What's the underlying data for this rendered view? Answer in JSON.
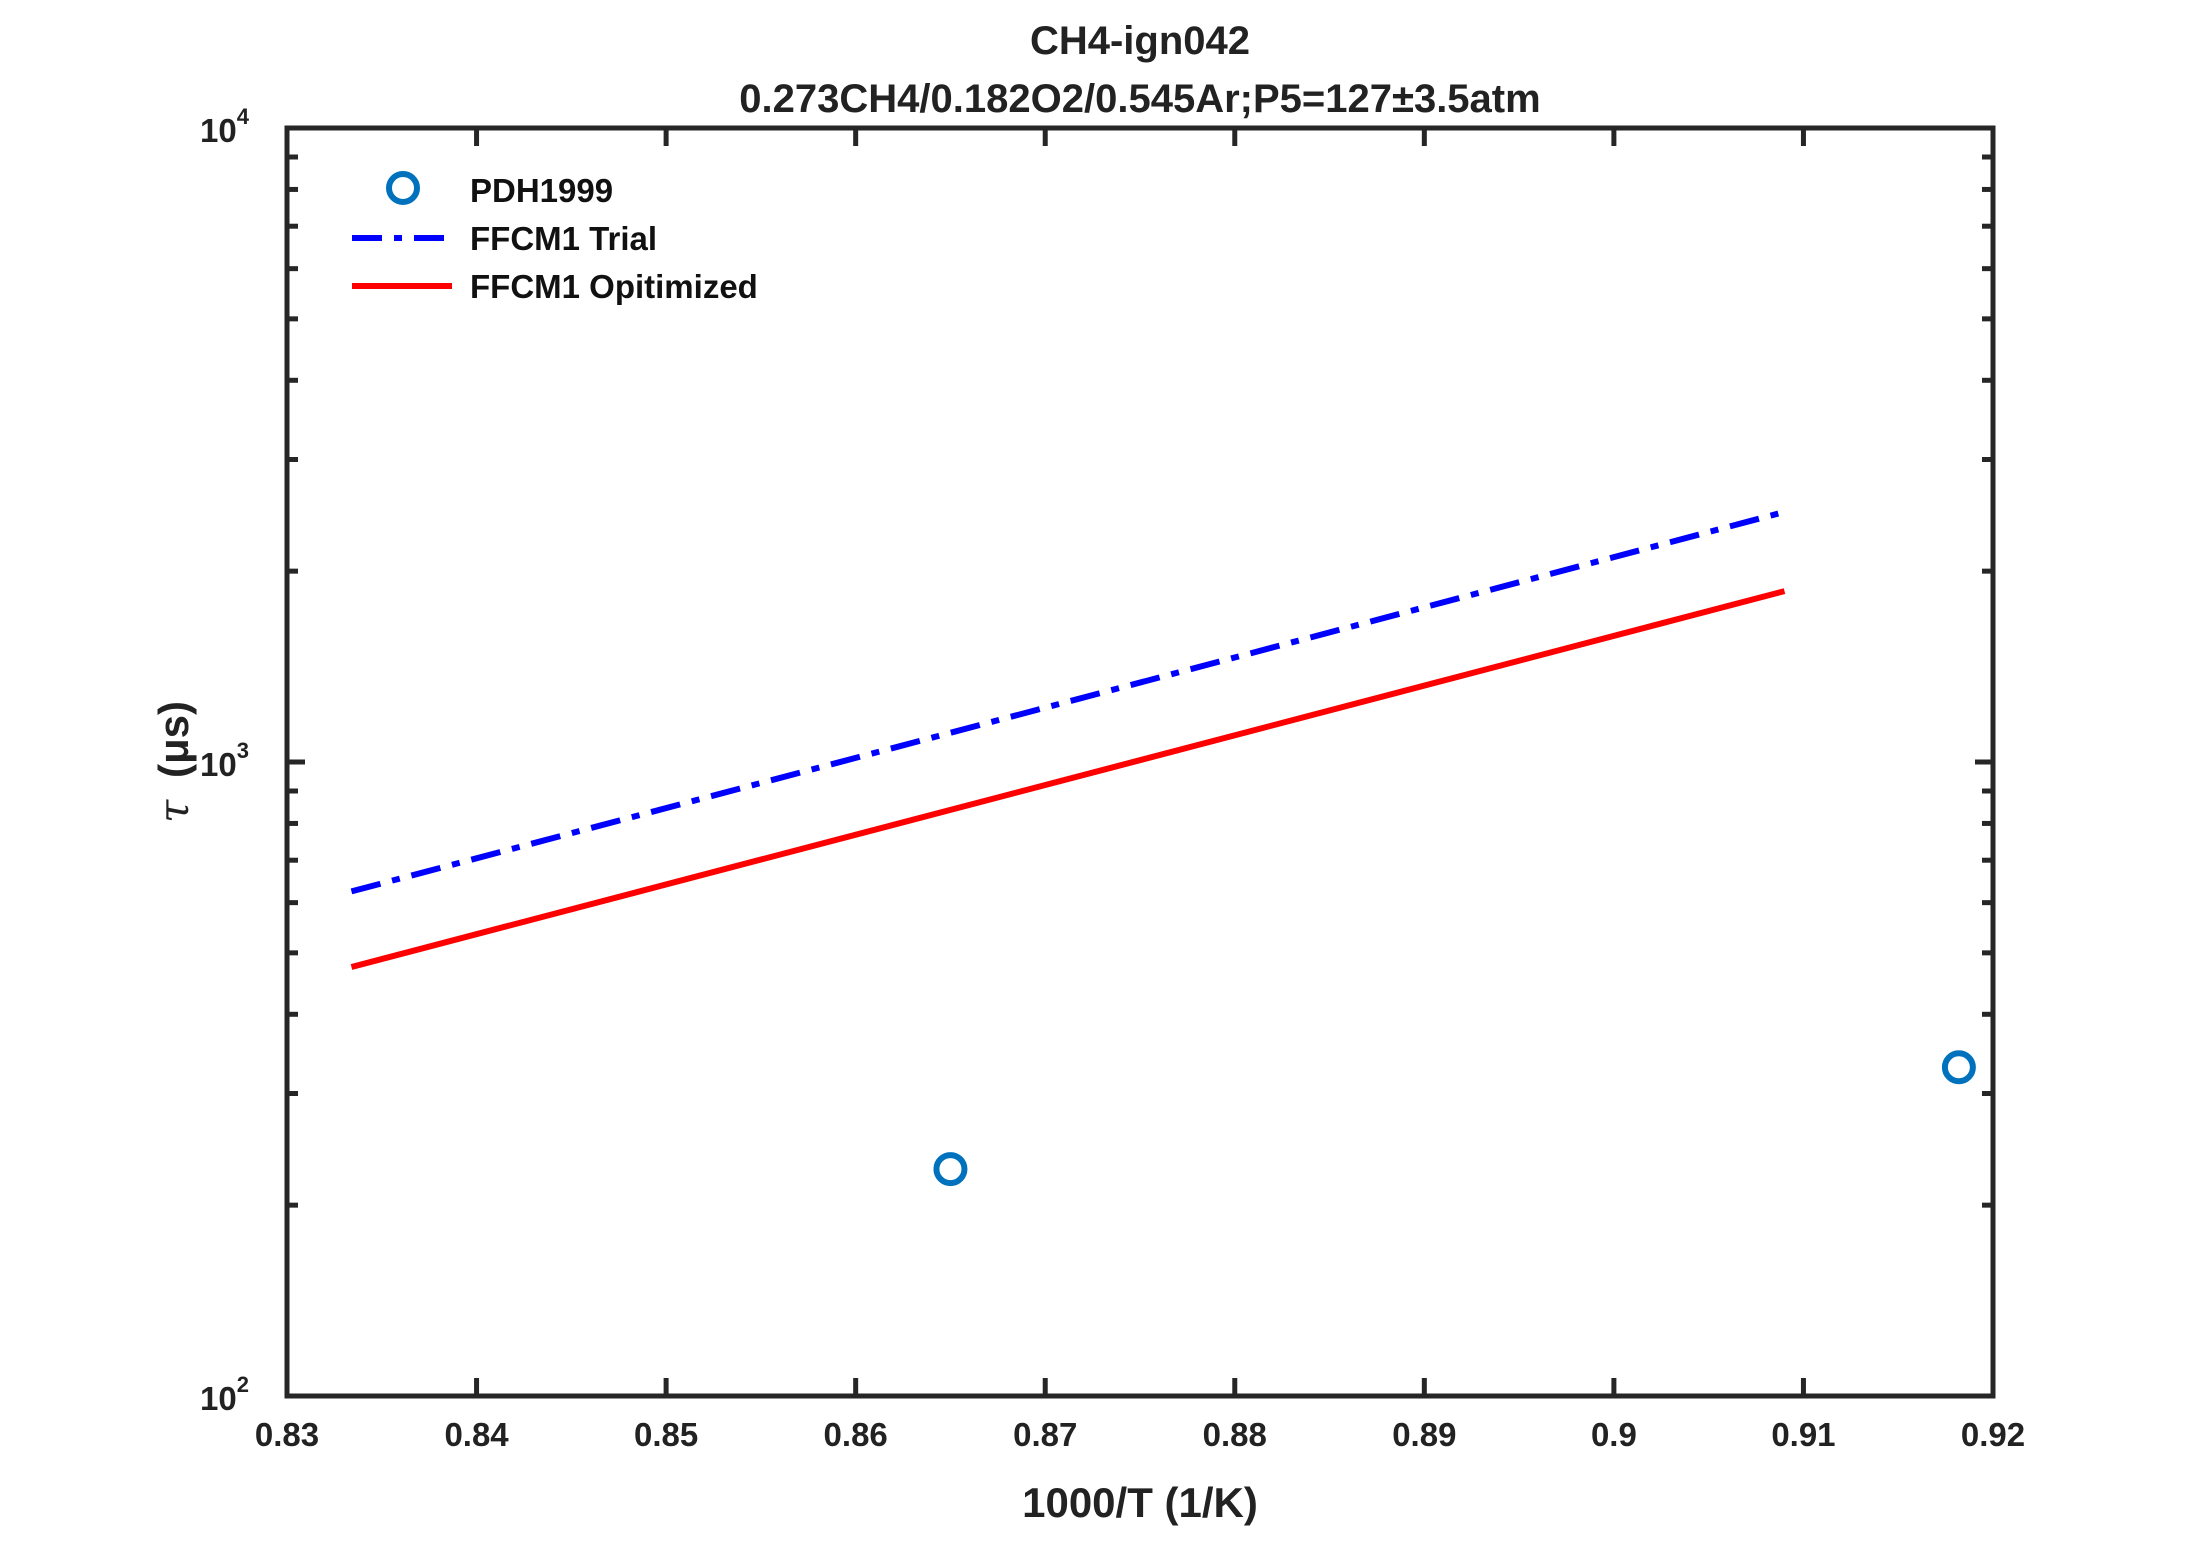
{
  "chart_data": {
    "type": "line",
    "title": "CH4-ign042",
    "subtitle": "0.273CH4/0.182O2/0.545Ar;P5=127±3.5atm",
    "xlabel": "1000/T (1/K)",
    "ylabel_symbol": "τ",
    "ylabel_unit": "(μs)",
    "xlim": [
      0.83,
      0.92
    ],
    "ylim": [
      100,
      10000
    ],
    "yscale": "log",
    "xticks": [
      0.83,
      0.84,
      0.85,
      0.86,
      0.87,
      0.88,
      0.89,
      0.9,
      0.91,
      0.92
    ],
    "xtick_labels": [
      "0.83",
      "0.84",
      "0.85",
      "0.86",
      "0.87",
      "0.88",
      "0.89",
      "0.9",
      "0.91",
      "0.92"
    ],
    "yticks_major": [
      {
        "value": 100,
        "base": "10",
        "exp": "2"
      },
      {
        "value": 1000,
        "base": "10",
        "exp": "3"
      },
      {
        "value": 10000,
        "base": "10",
        "exp": "4"
      }
    ],
    "legend_position": "top-left",
    "grid": false,
    "series": [
      {
        "name": "PDH1999",
        "kind": "scatter",
        "marker": "circle-open",
        "color": "#0072BD",
        "x": [
          0.865,
          0.9182
        ],
        "y": [
          228,
          330
        ]
      },
      {
        "name": "FFCM1 Trial",
        "kind": "line",
        "style": "dash-dot",
        "color": "#0000FF",
        "x": [
          0.8334,
          0.909
        ],
        "y": [
          625,
          2480
        ]
      },
      {
        "name": "FFCM1 Opitimized",
        "kind": "line",
        "style": "solid",
        "color": "#FF0000",
        "x": [
          0.8334,
          0.909
        ],
        "y": [
          475,
          1860
        ]
      }
    ]
  }
}
